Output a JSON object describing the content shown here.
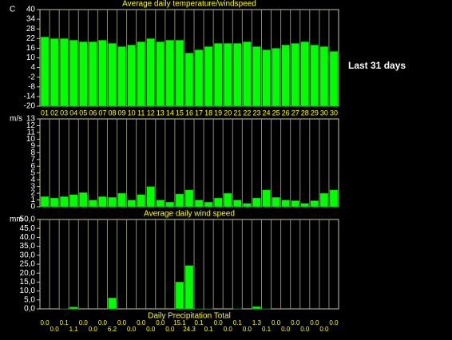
{
  "label": "Last 31 days",
  "chart_data": [
    {
      "type": "bar",
      "title": "Average daily temperature/windspeed",
      "y_label": "C",
      "color": "#00ff00",
      "categories": [
        "01",
        "02",
        "03",
        "04",
        "05",
        "06",
        "07",
        "08",
        "09",
        "10",
        "11",
        "12",
        "13",
        "14",
        "15",
        "16",
        "17",
        "18",
        "19",
        "20",
        "21",
        "22",
        "23",
        "24",
        "25",
        "26",
        "27",
        "28",
        "29",
        "30",
        "30"
      ],
      "values": [
        23,
        22,
        22,
        21,
        20,
        20,
        21,
        19,
        17,
        18,
        20,
        22,
        20,
        21,
        21,
        13,
        15,
        17,
        19,
        19,
        19,
        20,
        17,
        15,
        16,
        18,
        19,
        20,
        18,
        17,
        14
      ],
      "ylim": [
        -20,
        40
      ],
      "yticks": [
        40,
        34,
        28,
        22,
        16,
        10,
        4,
        -2,
        -8,
        -14,
        -20
      ]
    },
    {
      "type": "bar",
      "title": "Average daily wind speed",
      "y_label": "m/s",
      "color": "#00ff00",
      "values": [
        1.5,
        1.3,
        1.5,
        1.8,
        2.1,
        1.0,
        1.5,
        1.4,
        2.0,
        1.0,
        1.8,
        3.0,
        1.0,
        0.7,
        1.9,
        2.5,
        1.0,
        0.7,
        1.3,
        2.0,
        1.0,
        0.5,
        1.3,
        2.5,
        1.4,
        1.0,
        0.9,
        0.5,
        0.9,
        2.0,
        2.5
      ],
      "ylim": [
        0,
        13
      ],
      "yticks": [
        13,
        12,
        11,
        10,
        9,
        8,
        7,
        6,
        5,
        4,
        3,
        2,
        1,
        0
      ]
    },
    {
      "type": "bar",
      "title": "Daily Precipitation Total",
      "y_label": "mm",
      "color": "#00ff00",
      "values": [
        0,
        0,
        0.1,
        1.1,
        0,
        0,
        0,
        6.2,
        0,
        0,
        0,
        0,
        0,
        0,
        15.1,
        24.3,
        0.1,
        0.1,
        0,
        0,
        0.1,
        0,
        1.3,
        0.1,
        0,
        0,
        0,
        0,
        0,
        0,
        0
      ],
      "value_labels": [
        "0.0",
        "0.0",
        "0.1",
        "1.1",
        "0.0",
        "0.0",
        "0.0",
        "6.2",
        "0.0",
        "0.0",
        "0.0",
        "0.0",
        "0.0",
        "0.0",
        "15.1",
        "24.3",
        "0.1",
        "0.1",
        "0.0",
        "0.0",
        "0.1",
        "0.0",
        "1.3",
        "0.1",
        "0.0",
        "0.0",
        "0.0",
        "0.0",
        "0.0",
        "0.0",
        "0.0"
      ],
      "ylim": [
        0,
        50
      ],
      "yticks": [
        {
          "value": 50,
          "label": "50,0"
        },
        {
          "value": 45,
          "label": "45,0"
        },
        {
          "value": 40,
          "label": "40,0"
        },
        {
          "value": 35,
          "label": "35,0"
        },
        {
          "value": 30,
          "label": "30,0"
        },
        {
          "value": 25,
          "label": "25,0"
        },
        {
          "value": 20,
          "label": "20,0"
        },
        {
          "value": 15,
          "label": "15,0"
        },
        {
          "value": 10,
          "label": "10,0"
        },
        {
          "value": 5,
          "label": "5,0"
        },
        {
          "value": 0,
          "label": "0,0"
        }
      ]
    }
  ]
}
